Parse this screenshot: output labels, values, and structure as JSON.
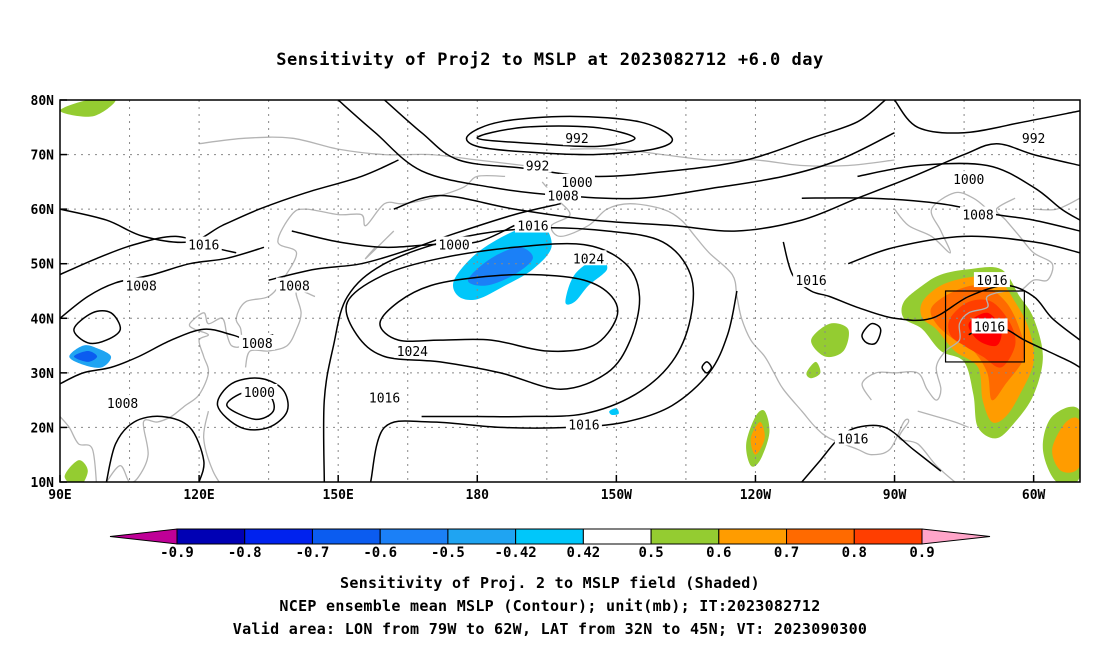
{
  "title": "Sensitivity of Proj2 to MSLP at 2023082712 +6.0 day",
  "captions": {
    "line1": "Sensitivity of Proj. 2 to MSLP field (Shaded)",
    "line2": "NCEP ensemble mean MSLP (Contour); unit(mb); IT:2023082712",
    "line3": "Valid area: LON from 79W to 62W, LAT from 32N to 45N; VT: 2023090300"
  },
  "chart_data": {
    "type": "heatmap",
    "title": "Sensitivity of Proj2 to MSLP at 2023082712 +6.0 day",
    "map_projection": "cylindrical lat-lon",
    "grid": true,
    "xlim_deg_east": [
      90,
      310
    ],
    "ylim_deg_north": [
      10,
      80
    ],
    "x_ticks": [
      {
        "lon": 90,
        "label": "90E"
      },
      {
        "lon": 120,
        "label": "120E"
      },
      {
        "lon": 150,
        "label": "150E"
      },
      {
        "lon": 180,
        "label": "180"
      },
      {
        "lon": 210,
        "label": "150W"
      },
      {
        "lon": 240,
        "label": "120W"
      },
      {
        "lon": 270,
        "label": "90W"
      },
      {
        "lon": 300,
        "label": "60W"
      }
    ],
    "y_ticks": [
      {
        "lat": 10,
        "label": "10N"
      },
      {
        "lat": 20,
        "label": "20N"
      },
      {
        "lat": 30,
        "label": "30N"
      },
      {
        "lat": 40,
        "label": "40N"
      },
      {
        "lat": 50,
        "label": "50N"
      },
      {
        "lat": 60,
        "label": "60N"
      },
      {
        "lat": 70,
        "label": "70N"
      },
      {
        "lat": 80,
        "label": "80N"
      }
    ],
    "colorbar": {
      "position": "bottom",
      "labels": [
        "-0.9",
        "-0.8",
        "-0.7",
        "-0.6",
        "-0.5",
        "-0.42",
        "0.42",
        "0.5",
        "0.6",
        "0.7",
        "0.8",
        "0.9"
      ],
      "colors": [
        "#bf0097",
        "#0000b4",
        "#0022ee",
        "#0b5cf0",
        "#1b80f7",
        "#1fa4f2",
        "#00c7fa",
        "#ffffff",
        "#94cc31",
        "#ff9c00",
        "#ff6a00",
        "#ff3e00",
        "#ff0000",
        "#ffa5c9"
      ]
    },
    "contour_labels_mb": [
      {
        "text": "992",
        "lon": 201.5,
        "lat": 73
      },
      {
        "text": "992",
        "lon": 300,
        "lat": 73
      },
      {
        "text": "992",
        "lon": 193,
        "lat": 68
      },
      {
        "text": "1000",
        "lon": 201.5,
        "lat": 65
      },
      {
        "text": "1000",
        "lon": 286,
        "lat": 65.5
      },
      {
        "text": "1008",
        "lon": 198.5,
        "lat": 62.5
      },
      {
        "text": "1008",
        "lon": 288,
        "lat": 59
      },
      {
        "text": "1016",
        "lon": 192,
        "lat": 57
      },
      {
        "text": "1024",
        "lon": 204,
        "lat": 51
      },
      {
        "text": "1000",
        "lon": 175,
        "lat": 53.5
      },
      {
        "text": "1016",
        "lon": 121,
        "lat": 53.5
      },
      {
        "text": "1008",
        "lon": 107.5,
        "lat": 46
      },
      {
        "text": "1008",
        "lon": 140.5,
        "lat": 46
      },
      {
        "text": "1008",
        "lon": 132.5,
        "lat": 35.5
      },
      {
        "text": "1024",
        "lon": 166,
        "lat": 34
      },
      {
        "text": "1016",
        "lon": 160,
        "lat": 25.5
      },
      {
        "text": "1000",
        "lon": 133,
        "lat": 26.5
      },
      {
        "text": "1008",
        "lon": 103.5,
        "lat": 24.5
      },
      {
        "text": "1016",
        "lon": 203,
        "lat": 20.5
      },
      {
        "text": "1016",
        "lon": 252,
        "lat": 47
      },
      {
        "text": "1016",
        "lon": 261,
        "lat": 18
      },
      {
        "text": "1016",
        "lon": 291,
        "lat": 47
      },
      {
        "text": "1016",
        "lon": 290.5,
        "lat": 38.5
      }
    ],
    "valid_area_box": {
      "lon": [
        281,
        298
      ],
      "lat": [
        32,
        45
      ]
    }
  }
}
